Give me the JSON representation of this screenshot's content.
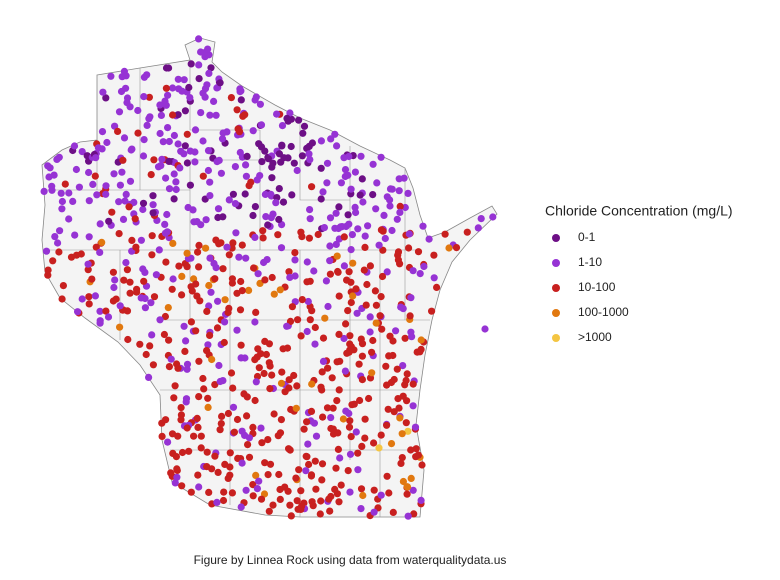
{
  "map": {
    "legend": {
      "title": "Chloride Concentration (mg/L)",
      "items": [
        {
          "label": "0-1",
          "color": "#6d0f86"
        },
        {
          "label": "1-10",
          "color": "#9633d4"
        },
        {
          "label": "10-100",
          "color": "#c8201f"
        },
        {
          "label": "100-1000",
          "color": "#e1780f"
        },
        {
          "label": ">1000",
          "color": "#f4c542"
        }
      ]
    },
    "caption": "Figure by Linnea Rock using data from waterqualitydata.us"
  }
}
